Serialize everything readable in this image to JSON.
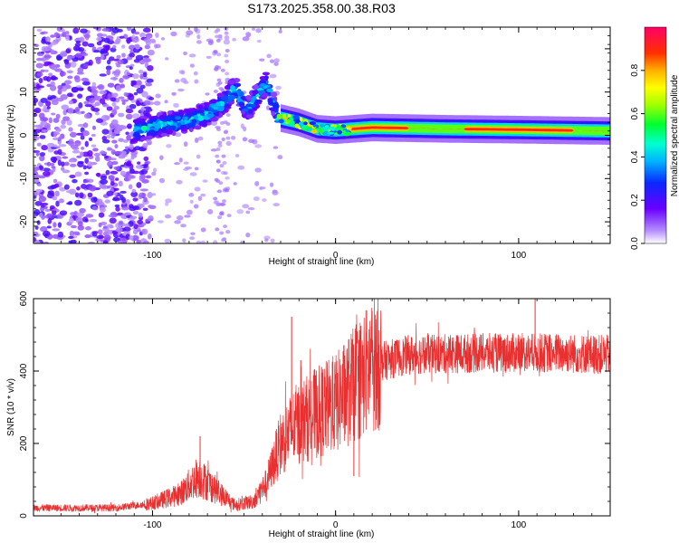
{
  "title": "S173.2025.358.00.38.R03",
  "chart_data": [
    {
      "type": "heatmap",
      "name": "spectrogram",
      "xlabel": "Height of straight line (km)",
      "ylabel": "Frequency (Hz)",
      "xlim": [
        -165,
        150
      ],
      "ylim": [
        -25,
        25
      ],
      "x_ticks": [
        -100,
        0,
        100
      ],
      "y_ticks": [
        -20,
        -10,
        0,
        10,
        20
      ],
      "colorbar": {
        "label": "Normalized spectral amplitude",
        "range": [
          0,
          1
        ],
        "ticks": [
          "0.0",
          "0.2",
          "0.4",
          "0.6",
          "0.8"
        ]
      },
      "features": [
        {
          "name": "noise-cloud",
          "x_range": [
            -165,
            -100
          ],
          "y_range": [
            -25,
            25
          ],
          "amplitude": 0.12
        },
        {
          "name": "rising-band",
          "points": [
            [
              -110,
              1
            ],
            [
              -95,
              2.5
            ],
            [
              -80,
              3.5
            ],
            [
              -70,
              5
            ],
            [
              -60,
              8
            ],
            [
              -55,
              11
            ],
            [
              -48,
              6
            ],
            [
              -38,
              12
            ],
            [
              -32,
              5
            ]
          ],
          "amplitude": 0.3
        },
        {
          "name": "secondary-trace",
          "x": -62,
          "y_range": [
            -25,
            25
          ],
          "amplitude": 0.05
        },
        {
          "name": "settled-carrier",
          "points": [
            [
              -30,
              4
            ],
            [
              -20,
              3
            ],
            [
              -10,
              1.5
            ],
            [
              0,
              1.2
            ],
            [
              20,
              1.8
            ],
            [
              60,
              1.5
            ],
            [
              100,
              1.3
            ],
            [
              150,
              1
            ]
          ],
          "amplitude": 0.9
        }
      ]
    },
    {
      "type": "line",
      "name": "snr",
      "xlabel": "Height of straight line (km)",
      "ylabel": "SNR (10 * v/v)",
      "xlim": [
        -165,
        150
      ],
      "ylim": [
        0,
        600
      ],
      "x_ticks": [
        -100,
        0,
        100
      ],
      "y_ticks": [
        0,
        200,
        400,
        600
      ],
      "color": "#e83030",
      "envelope": [
        {
          "x": -165,
          "y": 22
        },
        {
          "x": -120,
          "y": 22
        },
        {
          "x": -100,
          "y": 35
        },
        {
          "x": -85,
          "y": 60
        },
        {
          "x": -75,
          "y": 110
        },
        {
          "x": -65,
          "y": 70
        },
        {
          "x": -55,
          "y": 30
        },
        {
          "x": -45,
          "y": 40
        },
        {
          "x": -38,
          "y": 90
        },
        {
          "x": -30,
          "y": 200
        },
        {
          "x": -22,
          "y": 250
        },
        {
          "x": -12,
          "y": 280
        },
        {
          "x": 0,
          "y": 310
        },
        {
          "x": 10,
          "y": 360
        },
        {
          "x": 20,
          "y": 420
        },
        {
          "x": 40,
          "y": 445
        },
        {
          "x": 80,
          "y": 450
        },
        {
          "x": 120,
          "y": 450
        },
        {
          "x": 150,
          "y": 445
        }
      ],
      "spikes": [
        {
          "x": -74,
          "y": 220
        },
        {
          "x": -24,
          "y": 550
        },
        {
          "x": -19,
          "y": 430
        },
        {
          "x": 10,
          "y": 110
        },
        {
          "x": 109,
          "y": 600
        }
      ]
    }
  ]
}
